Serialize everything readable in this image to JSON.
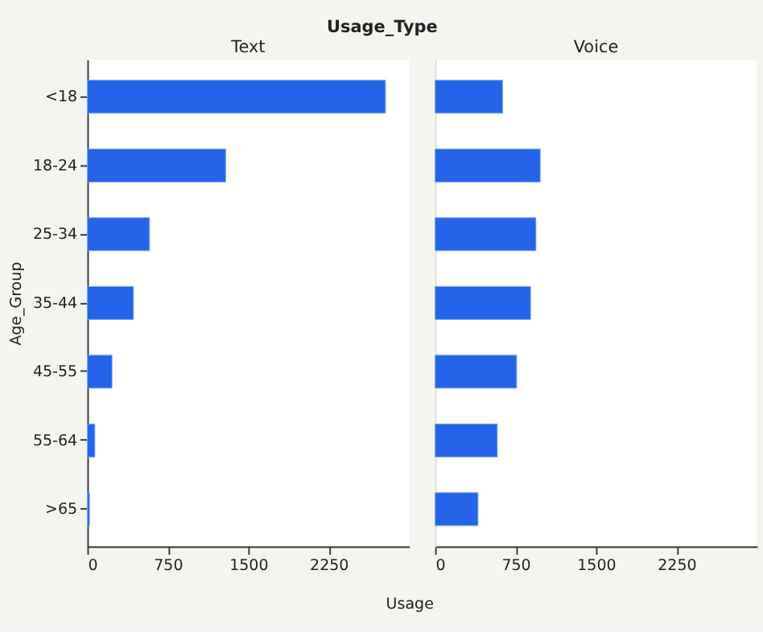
{
  "chart_data": [
    {
      "type": "bar",
      "orientation": "horizontal",
      "title": "Text",
      "xlabel": "Usage",
      "ylabel": "Age_Group",
      "annotations": [
        "Usage_Type"
      ],
      "categories": [
        "<18",
        "18-24",
        "25-34",
        "35-44",
        "45-55",
        "55-64",
        ">65"
      ],
      "series": [
        {
          "color": "#2563e8",
          "values": [
            2780,
            1290,
            580,
            430,
            230,
            70,
            20
          ]
        }
      ],
      "xlim": [
        0,
        3000
      ],
      "xticks": [
        0,
        750,
        1500,
        2250
      ]
    },
    {
      "type": "bar",
      "orientation": "horizontal",
      "title": "Voice",
      "categories": [
        null,
        null,
        null,
        null,
        null,
        null,
        null
      ],
      "series": [
        {
          "color": "#2563e8",
          "values": [
            630,
            980,
            940,
            890,
            760,
            580,
            400
          ]
        }
      ],
      "xlim": [
        0,
        3000
      ],
      "xticks": [
        0,
        750,
        1500,
        2250
      ]
    }
  ]
}
